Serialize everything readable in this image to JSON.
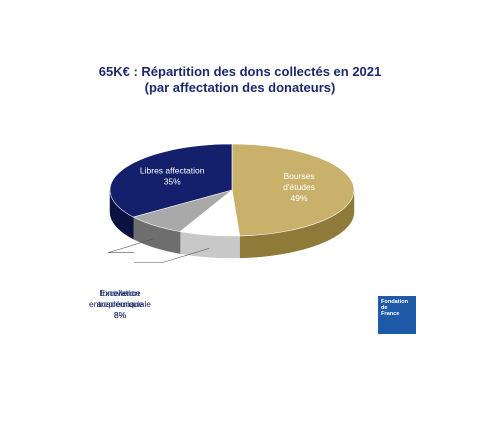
{
  "title": {
    "line1": "65K€ : Répartition des dons collectés en 2021",
    "line2": "(par affectation des donateurs)"
  },
  "chart_data": {
    "type": "pie",
    "three_d": true,
    "slices": [
      {
        "label_lines": [
          "Bourses",
          "d'études"
        ],
        "value": 49,
        "value_label": "49%",
        "color": "#c9b16b",
        "side": "#8f7a3a",
        "label_color": "#ffffff"
      },
      {
        "label_lines": [
          "Excellence",
          "académique"
        ],
        "value": 8,
        "value_label": "8%",
        "color": "#ffffff",
        "side": "#c8c8c8",
        "label_color": "#1b2a6b"
      },
      {
        "label_lines": [
          "Innovation",
          "entrepreunariale"
        ],
        "value": 8,
        "value_label": "8%",
        "color": "#a9a9a9",
        "side": "#6e6e6e",
        "label_color": "#1b2a6b"
      },
      {
        "label_lines": [
          "Libres affectation"
        ],
        "value": 35,
        "value_label": "35%",
        "color": "#14206b",
        "side": "#0b1240",
        "label_color": "#ffffff"
      }
    ]
  },
  "logo": {
    "lines": [
      "Fondation",
      "de",
      "France"
    ]
  }
}
